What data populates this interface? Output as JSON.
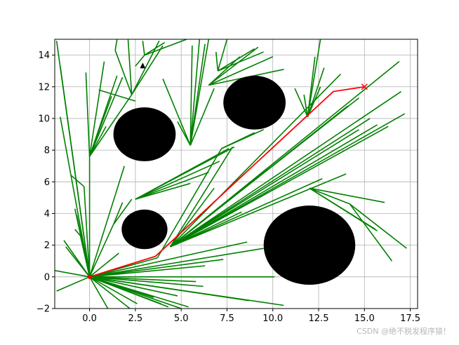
{
  "chart_data": {
    "type": "line",
    "title": "",
    "xlabel": "",
    "ylabel": "",
    "xlim": [
      -1.9,
      17.9
    ],
    "ylim": [
      -2,
      15
    ],
    "grid": true,
    "legend": "none",
    "x_ticks": [
      "0.0",
      "2.5",
      "5.0",
      "7.5",
      "10.0",
      "12.5",
      "15.0",
      "17.5"
    ],
    "y_ticks": [
      "−2",
      "0",
      "2",
      "4",
      "6",
      "8",
      "10",
      "12",
      "14"
    ],
    "x_tick_values": [
      0,
      2.5,
      5,
      7.5,
      10,
      12.5,
      15,
      17.5
    ],
    "y_tick_values": [
      -2,
      0,
      2,
      4,
      6,
      8,
      10,
      12,
      14
    ],
    "obstacles": [
      {
        "x": 3,
        "y": 9,
        "r": 1.7
      },
      {
        "x": 3,
        "y": 3,
        "r": 1.25
      },
      {
        "x": 9,
        "y": 11,
        "r": 1.7
      },
      {
        "x": 12,
        "y": 2,
        "r": 2.5
      }
    ],
    "start": {
      "x": 0,
      "y": 0
    },
    "goal": {
      "x": 15,
      "y": 12
    },
    "marker": {
      "x": 2.9,
      "y": 13.3
    },
    "tree_edges": [
      [
        [
          0,
          0
        ],
        [
          -0.7,
          3.9
        ]
      ],
      [
        [
          0,
          0
        ],
        [
          -1.6,
          13.3
        ]
      ],
      [
        [
          0,
          0
        ],
        [
          -1.6,
          10.1
        ]
      ],
      [
        [
          0,
          0
        ],
        [
          -1.8,
          14.9
        ]
      ],
      [
        [
          0,
          0
        ],
        [
          -1.4,
          2.3
        ]
      ],
      [
        [
          0,
          0
        ],
        [
          -1.9,
          0.4
        ]
      ],
      [
        [
          0,
          0
        ],
        [
          -1.8,
          -0.9
        ]
      ],
      [
        [
          0,
          0
        ],
        [
          -1.3,
          1.9
        ]
      ],
      [
        [
          0,
          0
        ],
        [
          -0.8,
          4.3
        ]
      ],
      [
        [
          0,
          0
        ],
        [
          -0.5,
          2.6
        ]
      ],
      [
        [
          0,
          0
        ],
        [
          -0.3,
          5.7
        ]
      ],
      [
        [
          -0.3,
          5.7
        ],
        [
          -1.0,
          6.4
        ]
      ],
      [
        [
          -0.5,
          2.6
        ],
        [
          -0.8,
          3.0
        ]
      ],
      [
        [
          0,
          0
        ],
        [
          0.0,
          7.6
        ]
      ],
      [
        [
          0.0,
          7.6
        ],
        [
          -0.2,
          12.9
        ]
      ],
      [
        [
          0.0,
          7.6
        ],
        [
          0.9,
          9.5
        ]
      ],
      [
        [
          0.0,
          7.6
        ],
        [
          1.2,
          11.4
        ]
      ],
      [
        [
          0.0,
          7.6
        ],
        [
          1.5,
          12.7
        ]
      ],
      [
        [
          0.0,
          7.6
        ],
        [
          2.3,
          11.5
        ]
      ],
      [
        [
          2.3,
          11.5
        ],
        [
          3.8,
          14.9
        ]
      ],
      [
        [
          2.3,
          11.5
        ],
        [
          4.0,
          14.6
        ]
      ],
      [
        [
          2.3,
          11.5
        ],
        [
          2.1,
          15.0
        ]
      ],
      [
        [
          2.3,
          11.5
        ],
        [
          1.4,
          14.3
        ]
      ],
      [
        [
          1.4,
          14.3
        ],
        [
          1.5,
          15.0
        ]
      ],
      [
        [
          0.0,
          7.6
        ],
        [
          1.8,
          12.6
        ]
      ],
      [
        [
          0.0,
          7.6
        ],
        [
          0.8,
          13.6
        ]
      ],
      [
        [
          0,
          0
        ],
        [
          1.9,
          7.0
        ]
      ],
      [
        [
          0,
          0
        ],
        [
          1.3,
          3.3
        ]
      ],
      [
        [
          1.3,
          3.3
        ],
        [
          2.3,
          4.9
        ]
      ],
      [
        [
          1.3,
          3.3
        ],
        [
          1.8,
          4.7
        ]
      ],
      [
        [
          0.5,
          11.8
        ],
        [
          2.5,
          11.1
        ]
      ],
      [
        [
          2.5,
          13.3
        ],
        [
          3.0,
          14.0
        ]
      ],
      [
        [
          3.0,
          14.0
        ],
        [
          4.1,
          14.8
        ]
      ],
      [
        [
          3.0,
          14.0
        ],
        [
          5.3,
          15.0
        ]
      ],
      [
        [
          3.0,
          14.0
        ],
        [
          2.9,
          14.9
        ]
      ],
      [
        [
          0,
          0
        ],
        [
          1.0,
          -2.0
        ]
      ],
      [
        [
          0,
          0
        ],
        [
          2.2,
          -2.0
        ]
      ],
      [
        [
          0,
          0
        ],
        [
          2.6,
          -1.7
        ]
      ],
      [
        [
          0,
          0
        ],
        [
          3.5,
          -1.3
        ]
      ],
      [
        [
          0,
          0
        ],
        [
          3.9,
          -1.7
        ]
      ],
      [
        [
          0,
          0
        ],
        [
          5.8,
          -0.3
        ]
      ],
      [
        [
          0,
          0
        ],
        [
          6.2,
          -0.6
        ]
      ],
      [
        [
          0,
          0
        ],
        [
          4.8,
          -1.2
        ]
      ],
      [
        [
          0,
          0
        ],
        [
          4.3,
          -1.9
        ]
      ],
      [
        [
          0,
          0
        ],
        [
          5.0,
          -2.0
        ]
      ],
      [
        [
          0,
          0
        ],
        [
          5.4,
          -1.9
        ]
      ],
      [
        [
          0,
          0
        ],
        [
          8.7,
          -1.5
        ]
      ],
      [
        [
          0,
          0
        ],
        [
          10.1,
          0.0
        ]
      ],
      [
        [
          0,
          0
        ],
        [
          10.6,
          -1.8
        ]
      ],
      [
        [
          0,
          0
        ],
        [
          7.3,
          1.1
        ]
      ],
      [
        [
          0,
          0
        ],
        [
          6.3,
          0.7
        ]
      ],
      [
        [
          0,
          0
        ],
        [
          9.5,
          1.8
        ]
      ],
      [
        [
          0,
          0
        ],
        [
          8.6,
          2.2
        ]
      ],
      [
        [
          0,
          0
        ],
        [
          1.6,
          1.5
        ]
      ],
      [
        [
          0,
          0
        ],
        [
          3.7,
          1.2
        ]
      ],
      [
        [
          3.7,
          1.2
        ],
        [
          7.2,
          8.1
        ]
      ],
      [
        [
          7.2,
          8.1
        ],
        [
          9.0,
          9.1
        ]
      ],
      [
        [
          7.2,
          8.1
        ],
        [
          9.5,
          9.3
        ]
      ],
      [
        [
          4.4,
          1.9
        ],
        [
          7.8,
          8.2
        ]
      ],
      [
        [
          4.4,
          1.9
        ],
        [
          6.8,
          5.6
        ]
      ],
      [
        [
          4.4,
          1.9
        ],
        [
          8.3,
          4.1
        ]
      ],
      [
        [
          4.4,
          1.9
        ],
        [
          12.7,
          6.2
        ]
      ],
      [
        [
          4.4,
          1.9
        ],
        [
          14.0,
          6.5
        ]
      ],
      [
        [
          4.4,
          1.9
        ],
        [
          14.7,
          9.3
        ]
      ],
      [
        [
          4.4,
          1.9
        ],
        [
          15.3,
          10.0
        ]
      ],
      [
        [
          4.4,
          1.9
        ],
        [
          15.7,
          9.6
        ]
      ],
      [
        [
          4.4,
          1.9
        ],
        [
          16.3,
          9.5
        ]
      ],
      [
        [
          4.4,
          1.9
        ],
        [
          17.0,
          11.7
        ]
      ],
      [
        [
          4.4,
          1.9
        ],
        [
          16.9,
          13.6
        ]
      ],
      [
        [
          4.4,
          1.9
        ],
        [
          17.2,
          10.3
        ]
      ],
      [
        [
          4.4,
          1.9
        ],
        [
          13.7,
          12.8
        ]
      ],
      [
        [
          4.4,
          1.9
        ],
        [
          14.7,
          11.3
        ]
      ],
      [
        [
          4.4,
          1.9
        ],
        [
          14.1,
          10.8
        ]
      ],
      [
        [
          2.5,
          4.9
        ],
        [
          7.1,
          7.3
        ]
      ],
      [
        [
          2.5,
          4.9
        ],
        [
          7.6,
          8.1
        ]
      ],
      [
        [
          2.5,
          4.9
        ],
        [
          6.5,
          6.6
        ]
      ],
      [
        [
          2.5,
          4.9
        ],
        [
          5.5,
          5.9
        ]
      ],
      [
        [
          2.5,
          4.9
        ],
        [
          7.9,
          8.2
        ]
      ],
      [
        [
          5.5,
          8.3
        ],
        [
          4.0,
          12.5
        ]
      ],
      [
        [
          5.5,
          8.3
        ],
        [
          6.0,
          15.0
        ]
      ],
      [
        [
          5.5,
          8.3
        ],
        [
          6.3,
          14.7
        ]
      ],
      [
        [
          5.5,
          8.3
        ],
        [
          6.5,
          15.0
        ]
      ],
      [
        [
          5.5,
          8.3
        ],
        [
          5.6,
          14.6
        ]
      ],
      [
        [
          5.5,
          8.3
        ],
        [
          6.8,
          11.9
        ]
      ],
      [
        [
          5.5,
          8.3
        ],
        [
          4.8,
          9.8
        ]
      ],
      [
        [
          6.5,
          12.1
        ],
        [
          10.6,
          13.1
        ]
      ],
      [
        [
          6.5,
          12.1
        ],
        [
          10.0,
          13.9
        ]
      ],
      [
        [
          6.5,
          12.1
        ],
        [
          9.2,
          14.5
        ]
      ],
      [
        [
          6.5,
          12.1
        ],
        [
          8.2,
          13.9
        ]
      ],
      [
        [
          7.0,
          13.0
        ],
        [
          9.0,
          14.4
        ]
      ],
      [
        [
          7.0,
          13.0
        ],
        [
          9.5,
          14.2
        ]
      ],
      [
        [
          7.0,
          13.0
        ],
        [
          7.5,
          15.0
        ]
      ],
      [
        [
          7.0,
          13.0
        ],
        [
          6.9,
          14.2
        ]
      ],
      [
        [
          11.9,
          10.1
        ],
        [
          12.3,
          13.9
        ]
      ],
      [
        [
          11.9,
          10.1
        ],
        [
          12.6,
          15.0
        ]
      ],
      [
        [
          11.9,
          10.1
        ],
        [
          12.8,
          13.2
        ]
      ],
      [
        [
          11.9,
          10.1
        ],
        [
          11.7,
          11.5
        ]
      ],
      [
        [
          11.9,
          10.1
        ],
        [
          11.2,
          11.9
        ]
      ],
      [
        [
          11.9,
          10.1
        ],
        [
          12.6,
          12.0
        ]
      ],
      [
        [
          12.0,
          5.6
        ],
        [
          16.1,
          4.7
        ]
      ],
      [
        [
          12.0,
          5.6
        ],
        [
          15.7,
          2.9
        ]
      ],
      [
        [
          12.0,
          5.6
        ],
        [
          15.6,
          3.0
        ]
      ],
      [
        [
          12.0,
          5.6
        ],
        [
          14.2,
          4.6
        ]
      ],
      [
        [
          14.2,
          4.6
        ],
        [
          17.3,
          1.8
        ]
      ],
      [
        [
          14.2,
          4.6
        ],
        [
          16.5,
          1.0
        ]
      ]
    ],
    "path": {
      "name": "",
      "points": [
        [
          0,
          0
        ],
        [
          3.6,
          1.3
        ],
        [
          13.3,
          11.7
        ],
        [
          15,
          12
        ]
      ]
    },
    "colors": {
      "tree": "#008000",
      "path": "#ff0000",
      "obstacle": "#000000",
      "grid": "#b0b0b0"
    }
  },
  "watermark": "CSDN @绝不脱发程序猿！"
}
